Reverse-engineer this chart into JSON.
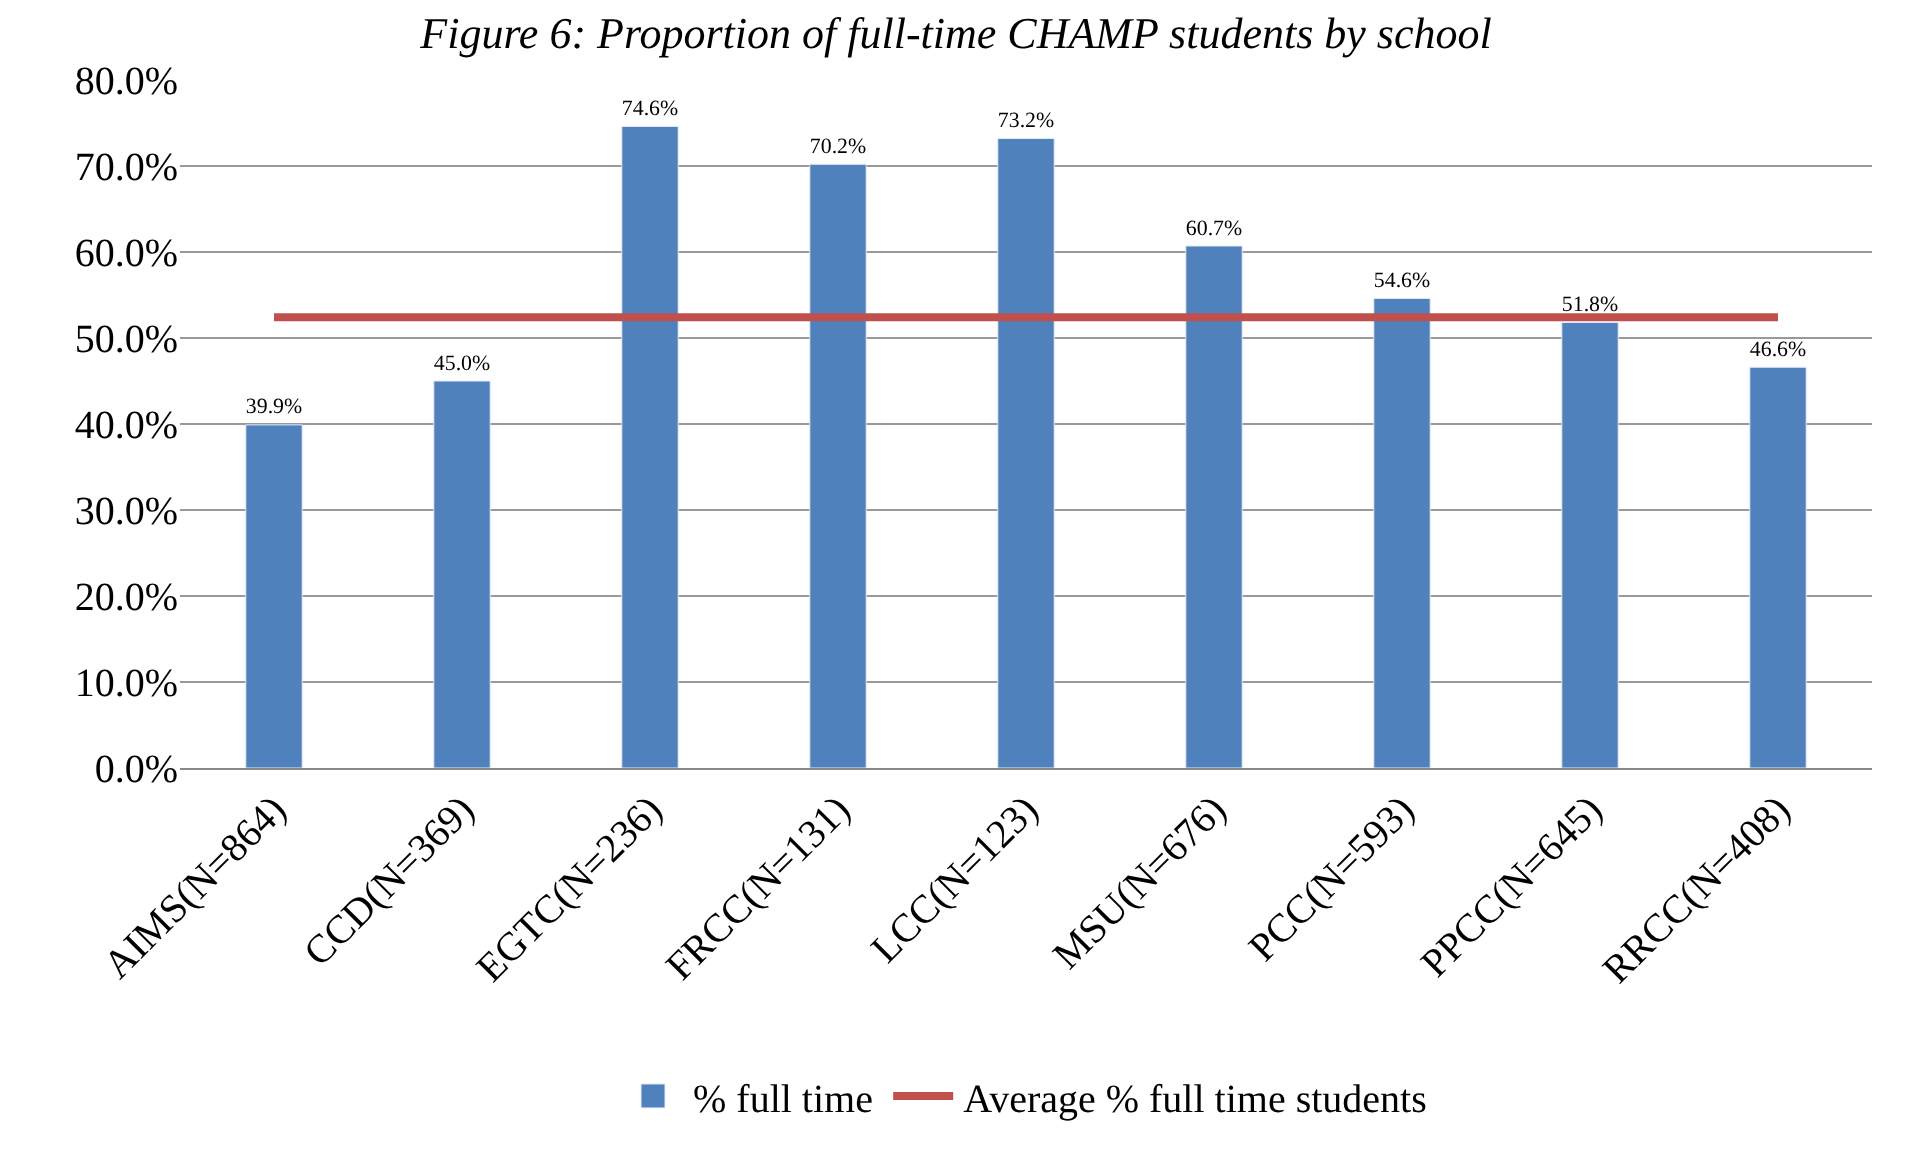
{
  "chart_data": {
    "type": "bar",
    "title": "Figure 6: Proportion of full-time CHAMP students by school",
    "categories": [
      "AIMS(N=864)",
      "CCD(N=369)",
      "EGTC(N=236)",
      "FRCC(N=131)",
      "LCC(N=123)",
      "MSU(N=676)",
      "PCC(N=593)",
      "PPCC(N=645)",
      "RRCC(N=408)"
    ],
    "series": [
      {
        "name": "% full time",
        "color": "#4f81bd",
        "values": [
          39.9,
          45.0,
          74.6,
          70.2,
          73.2,
          60.7,
          54.6,
          51.8,
          46.6
        ],
        "value_labels": [
          "39.9%",
          "45.0%",
          "74.6%",
          "70.2%",
          "73.2%",
          "60.7%",
          "54.6%",
          "51.8%",
          "46.6%"
        ]
      },
      {
        "name": "Average % full time students",
        "type": "line",
        "color": "#c0504d",
        "values": [
          52.4,
          52.4,
          52.4,
          52.4,
          52.4,
          52.4,
          52.4,
          52.4,
          52.4
        ]
      }
    ],
    "ylim": [
      0,
      80
    ],
    "yticks": [
      {
        "value": 0,
        "label": "0.0%"
      },
      {
        "value": 10,
        "label": "10.0%"
      },
      {
        "value": 20,
        "label": "20.0%"
      },
      {
        "value": 30,
        "label": "30.0%"
      },
      {
        "value": 40,
        "label": "40.0%"
      },
      {
        "value": 50,
        "label": "50.0%"
      },
      {
        "value": 60,
        "label": "60.0%"
      },
      {
        "value": 70,
        "label": "70.0%"
      },
      {
        "value": 80,
        "label": "80.0%"
      }
    ],
    "grid": "y",
    "legend": "bottom",
    "marker": "none",
    "line_style": "solid"
  }
}
